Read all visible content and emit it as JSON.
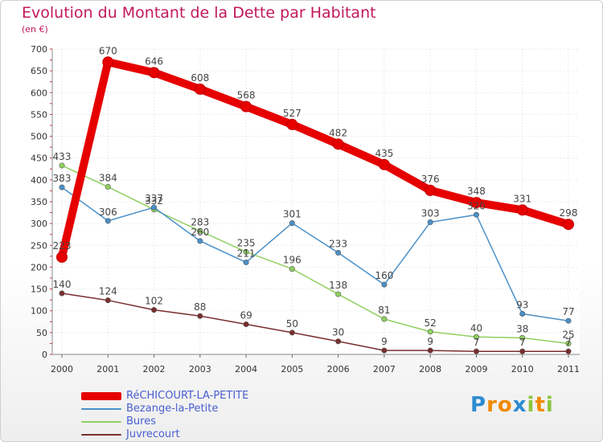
{
  "chart_data": {
    "type": "line",
    "title": "Evolution du Montant de la Dette par Habitant",
    "subtitle": "(en €)",
    "xlabel": "",
    "ylabel": "",
    "ylim": [
      0,
      700
    ],
    "yticks": [
      0,
      50,
      100,
      150,
      200,
      250,
      300,
      350,
      400,
      450,
      500,
      550,
      600,
      650,
      700
    ],
    "categories": [
      "2000",
      "2001",
      "2002",
      "2003",
      "2004",
      "2005",
      "2006",
      "2007",
      "2008",
      "2009",
      "2010",
      "2011"
    ],
    "legend_position": "bottom-left",
    "grid": true,
    "series": [
      {
        "name": "RéCHICOURT-LA-PETITE",
        "color": "#e60000",
        "values": [
          223,
          670,
          646,
          608,
          568,
          527,
          482,
          435,
          376,
          348,
          331,
          298
        ],
        "labels": [
          "223",
          "670",
          "646",
          "608",
          "568",
          "527",
          "482",
          "435",
          "376",
          "348",
          "331",
          "298"
        ]
      },
      {
        "name": "Bezange-la-Petite",
        "color": "#4a90c8",
        "values": [
          383,
          306,
          337,
          260,
          211,
          301,
          233,
          160,
          303,
          320,
          93,
          77
        ],
        "labels": [
          "383",
          "306",
          "337",
          "260",
          "211",
          "301",
          "233",
          "160",
          "303",
          "320",
          "93",
          "77"
        ]
      },
      {
        "name": "Bures",
        "color": "#90d060",
        "values": [
          433,
          384,
          332,
          283,
          235,
          196,
          138,
          81,
          52,
          40,
          38,
          25
        ],
        "labels": [
          "433",
          "384",
          "332",
          "283",
          "235",
          "196",
          "138",
          "81",
          "52",
          "40",
          "38",
          "25"
        ]
      },
      {
        "name": "Juvrecourt",
        "color": "#7a2e2e",
        "values": [
          140,
          124,
          102,
          88,
          69,
          50,
          30,
          9,
          9,
          7,
          7,
          7
        ],
        "labels": [
          "140",
          "124",
          "102",
          "88",
          "69",
          "50",
          "30",
          "9",
          "9",
          "7",
          "7",
          "7"
        ]
      }
    ]
  },
  "logo": {
    "text": "Proxiti",
    "letters": [
      "P",
      "r",
      "o",
      "x",
      "i",
      "t",
      "i"
    ],
    "colors": [
      "#2e8bd0",
      "#f08a00",
      "#f08a00",
      "#2e8bd0",
      "#8cc63f",
      "#f08a00",
      "#8cc63f"
    ]
  }
}
